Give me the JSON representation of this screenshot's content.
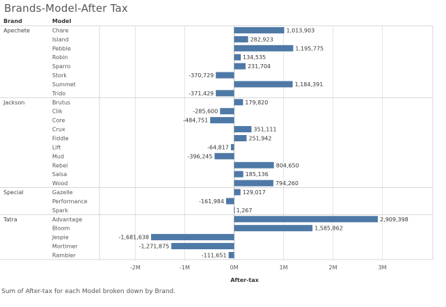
{
  "title": "Brands-Model-After Tax",
  "caption": "Sum of After-tax for each Model broken down by Brand.",
  "chart_data": {
    "type": "bar",
    "orientation": "horizontal",
    "row_headers": [
      "Brand",
      "Model"
    ],
    "xlabel": "After-tax",
    "xlim": [
      -2500000,
      3500000
    ],
    "x_ticks": [
      {
        "value": -2000000,
        "label": "-2M"
      },
      {
        "value": -1000000,
        "label": "-1M"
      },
      {
        "value": 0,
        "label": "0M"
      },
      {
        "value": 1000000,
        "label": "1M"
      },
      {
        "value": 2000000,
        "label": "2M"
      },
      {
        "value": 3000000,
        "label": "3M"
      }
    ],
    "bar_color": "#4e79a7",
    "groups": [
      {
        "brand": "Apechete",
        "models": [
          {
            "name": "Chare",
            "value": 1013903,
            "label": "1,013,903"
          },
          {
            "name": "Island",
            "value": 282923,
            "label": "282,923"
          },
          {
            "name": "Pebble",
            "value": 1195775,
            "label": "1,195,775"
          },
          {
            "name": "Robin",
            "value": 134535,
            "label": "134,535"
          },
          {
            "name": "Sparro",
            "value": 231704,
            "label": "231,704"
          },
          {
            "name": "Stork",
            "value": -370729,
            "label": "-370,729"
          },
          {
            "name": "Summet",
            "value": 1184391,
            "label": "1,184,391"
          },
          {
            "name": "Trido",
            "value": -371429,
            "label": "-371,429"
          }
        ]
      },
      {
        "brand": "Jackson",
        "models": [
          {
            "name": "Brutus",
            "value": 179820,
            "label": "179,820"
          },
          {
            "name": "Clik",
            "value": -285600,
            "label": "-285,600"
          },
          {
            "name": "Core",
            "value": -484751,
            "label": "-484,751"
          },
          {
            "name": "Crux",
            "value": 351111,
            "label": "351,111"
          },
          {
            "name": "Fiddle",
            "value": 251942,
            "label": "251,942"
          },
          {
            "name": "Lift",
            "value": -64817,
            "label": "-64,817"
          },
          {
            "name": "Mud",
            "value": -396245,
            "label": "-396,245"
          },
          {
            "name": "Rebel",
            "value": 804650,
            "label": "804,650"
          },
          {
            "name": "Salsa",
            "value": 185136,
            "label": "185,136"
          },
          {
            "name": "Wood",
            "value": 794260,
            "label": "794,260"
          }
        ]
      },
      {
        "brand": "Special",
        "models": [
          {
            "name": "Gazelle",
            "value": 129017,
            "label": "129,017"
          },
          {
            "name": "Performance",
            "value": -161984,
            "label": "-161,984"
          },
          {
            "name": "Spark",
            "value": 1267,
            "label": "1,267"
          }
        ]
      },
      {
        "brand": "Tatra",
        "models": [
          {
            "name": "Advantage",
            "value": 2909398,
            "label": "2,909,398"
          },
          {
            "name": "Bloom",
            "value": 1585862,
            "label": "1,585,862"
          },
          {
            "name": "Jespie",
            "value": -1681638,
            "label": "-1,681,638"
          },
          {
            "name": "Mortimer",
            "value": -1271875,
            "label": "-1,271,875"
          },
          {
            "name": "Rambler",
            "value": -111651,
            "label": "-111,651"
          }
        ]
      }
    ]
  }
}
